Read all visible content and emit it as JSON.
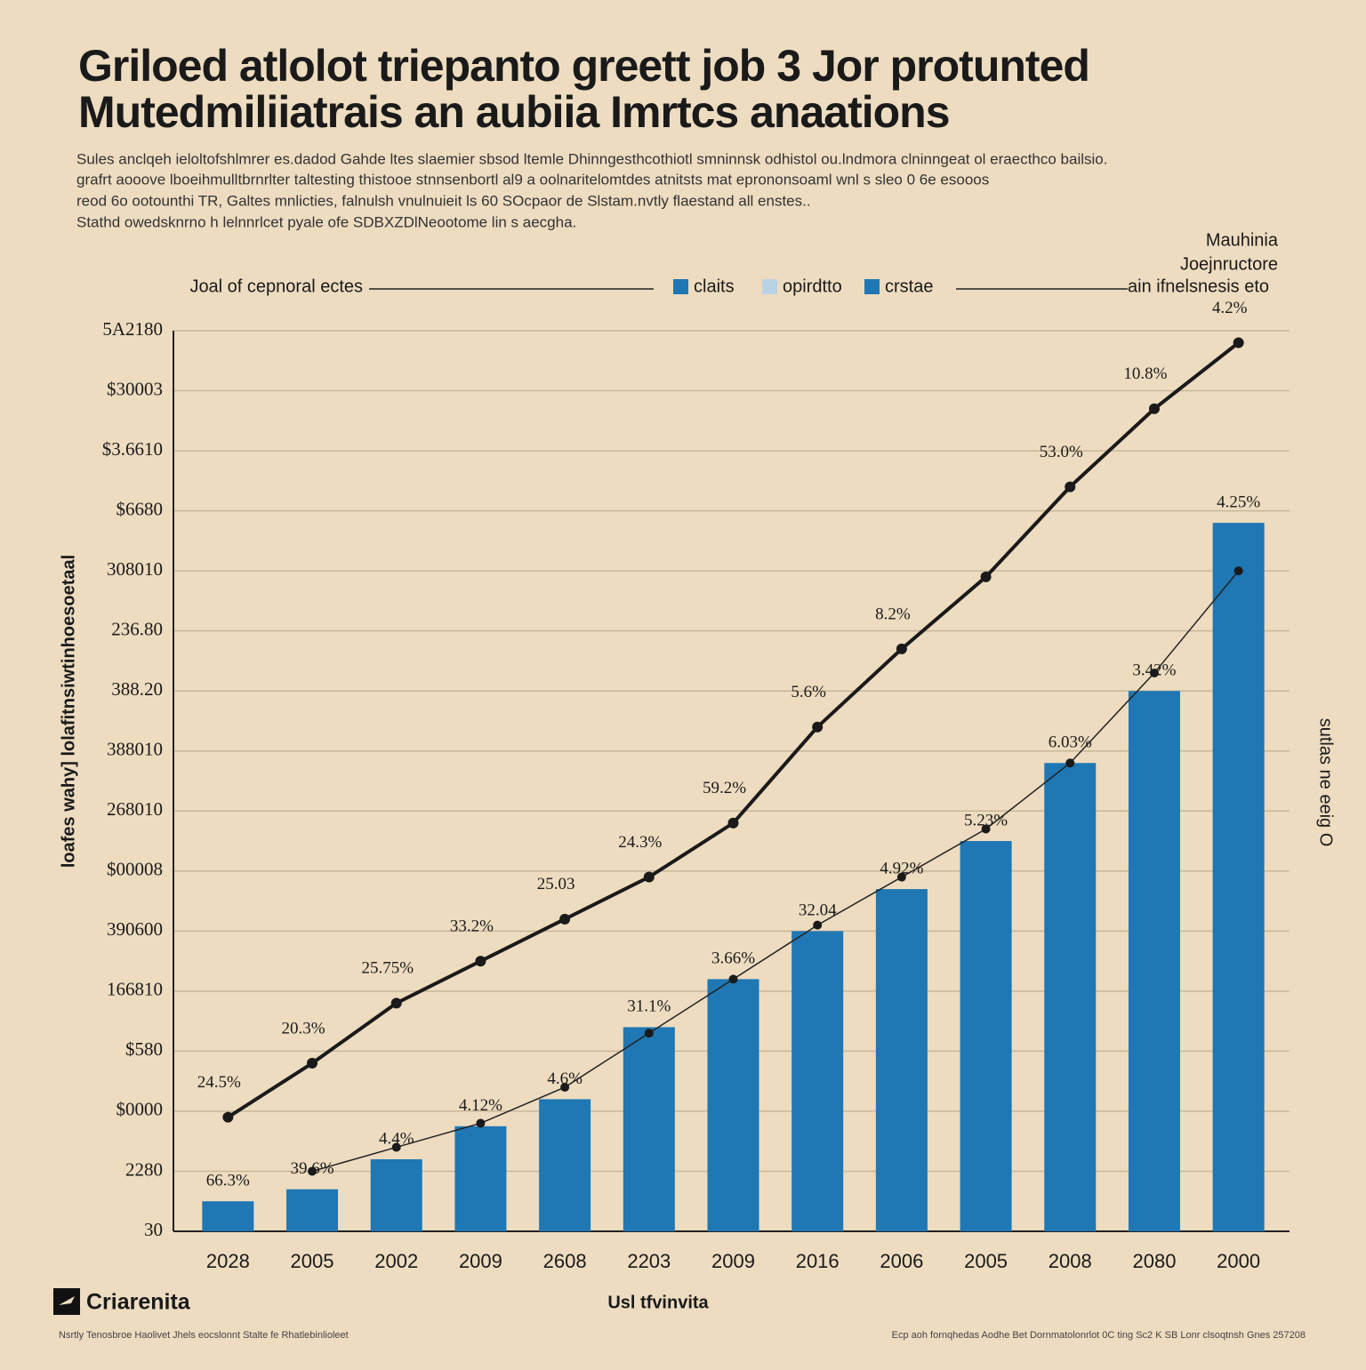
{
  "chart_data": {
    "type": "bar",
    "title": [
      "Griloed atlolot triepanto greett job 3 Jor protunted",
      "Mutedmiliiatrais an aubiia Imrtcs anaations"
    ],
    "subtitle": [
      "Sules anclqeh ieloltofshlmrer es.dadod Gahde ltes slaemier sbsod ltemle Dhinngesthcothiotl smninnsk odhistol ou.lndmora clninngeat ol eraecthco bailsio.",
      "grafrt aooove lboeihmulltbrnrlter taltesting thistooe stnnsenbortl al9 a oolnaritelomtdes atnitsts mat eprononsoaml wnl s sleo 0 6e esooos",
      "reod 6o ootounthi TR, Galtes mnlicties,  falnulsh vnulnuieit ls 60 SOcpaor de Slstam.nvtly flaestand all enstes..",
      "Stathd owedsknrno h lelnnrlcet pyale ofe SDBXZDlNeootome lin s aecgha."
    ],
    "legend_title": "Joal of cepnoral ectes",
    "note": [
      "Mauhinia",
      "Joejnructore",
      "ain ifnelsnesis eto"
    ],
    "y_label": "loafes wahy] lolafitnsiwtinhoesoetaal",
    "y2_label": "sutlas ne eeig O",
    "x_label": "Usl tfvinvita",
    "logo": "Criarenita",
    "footer_left": "Nsrtly Tenosbroe Haolivet Jhels eocslonnt Stalte fe Rhatlebinlioleet",
    "footer_right": "Ecp aoh fornqhedas Aodhe Bet Dornmatolonrlot 0C ting  Sc2 K SB Lonr clsoqtnsh Gnes 257208",
    "categories": [
      "2028",
      "2005",
      "2002",
      "2009",
      "2608",
      "2203",
      "2009",
      "2016",
      "2006",
      "2005",
      "2008",
      "2080",
      "2000"
    ],
    "ylim": [
      0,
      15
    ],
    "yticks": [
      {
        "value": 0,
        "label": "30"
      },
      {
        "value": 1,
        "label": "2280"
      },
      {
        "value": 2,
        "label": "$0000"
      },
      {
        "value": 3,
        "label": "$580"
      },
      {
        "value": 4,
        "label": "166810"
      },
      {
        "value": 5,
        "label": "390600"
      },
      {
        "value": 6,
        "label": "$00008"
      },
      {
        "value": 7,
        "label": "268010"
      },
      {
        "value": 8,
        "label": "388010"
      },
      {
        "value": 9,
        "label": "388.20"
      },
      {
        "value": 10,
        "label": "236.80"
      },
      {
        "value": 11,
        "label": "308010"
      },
      {
        "value": 12,
        "label": "$6680"
      },
      {
        "value": 13,
        "label": "$3.6610"
      },
      {
        "value": 14,
        "label": "$30003"
      },
      {
        "value": 15,
        "label": "5A2180"
      }
    ],
    "grid": true,
    "series": [
      {
        "name": "claits",
        "type": "bar",
        "color": "#1f77b4",
        "swatch": "#1f77b4",
        "values": [
          0.5,
          0.7,
          1.2,
          1.75,
          2.2,
          3.4,
          4.2,
          5.0,
          5.7,
          6.5,
          7.8,
          9.0,
          11.8
        ],
        "point_labels": [
          "66.3%",
          "39.6%",
          "4.4%",
          "4.12%",
          "4.6%",
          "31.1%",
          "3.66%",
          "32.04",
          "4.92%",
          "5.23%",
          "6.03%",
          "3.42%",
          "4.25%"
        ]
      },
      {
        "name": "opirdtto",
        "type": "line",
        "color": "#222222",
        "width": 1.5,
        "swatch": "#b9d3e6",
        "values": [
          null,
          1.0,
          1.4,
          1.8,
          2.4,
          3.3,
          4.2,
          5.1,
          5.9,
          6.7,
          7.8,
          9.3,
          11.0
        ]
      },
      {
        "name": "crstae",
        "type": "line",
        "color": "#1a1a1a",
        "width": 4,
        "swatch": "#1f77b4",
        "values": [
          1.9,
          2.8,
          3.8,
          4.5,
          5.2,
          5.9,
          6.8,
          8.4,
          9.7,
          10.9,
          12.4,
          13.7,
          14.8
        ],
        "point_labels": [
          "24.5%",
          "20.3%",
          "25.75%",
          "33.2%",
          "25.03",
          "24.3%",
          "59.2%",
          "5.6%",
          "8.2%",
          null,
          "53.0%",
          "10.8%",
          "4.2%"
        ]
      }
    ]
  }
}
